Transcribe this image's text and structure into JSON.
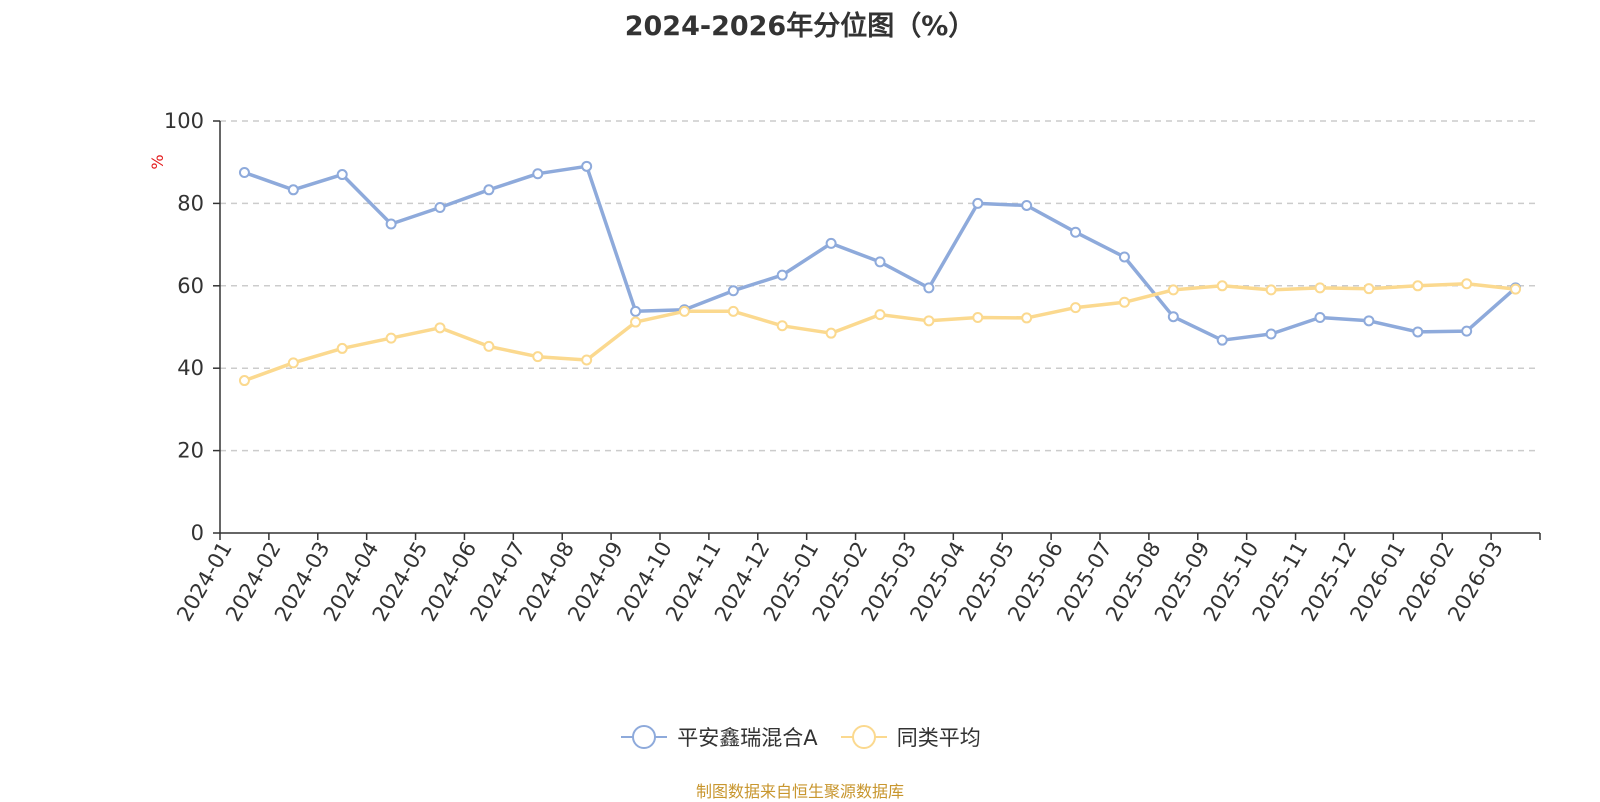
{
  "chart_data": {
    "type": "line",
    "title": "2024-2026年分位图（%）",
    "ylabel": "%",
    "ylim": [
      0,
      100
    ],
    "yticks": [
      0,
      20,
      40,
      60,
      80,
      100
    ],
    "grid": true,
    "legend_position": "bottom",
    "categories": [
      "2024-01",
      "2024-02",
      "2024-03",
      "2024-04",
      "2024-05",
      "2024-06",
      "2024-07",
      "2024-08",
      "2024-09",
      "2024-10",
      "2024-11",
      "2024-12",
      "2025-01",
      "2025-02",
      "2025-03",
      "2025-04",
      "2025-05",
      "2025-06",
      "2025-07",
      "2025-08",
      "2025-09",
      "2025-10",
      "2025-11",
      "2025-12",
      "2026-01",
      "2026-02",
      "2026-03"
    ],
    "series": [
      {
        "name": "平安鑫瑞混合A",
        "color": "#8eaadb",
        "values": [
          87.5,
          83.3,
          87.0,
          75.0,
          79.0,
          83.3,
          87.2,
          89.0,
          53.8,
          54.2,
          58.8,
          62.6,
          70.3,
          65.8,
          59.5,
          80.0,
          79.5,
          73.0,
          67.0,
          52.5,
          46.8,
          48.3,
          52.3,
          51.5,
          48.8,
          49.0,
          59.5
        ]
      },
      {
        "name": "同类平均",
        "color": "#fbd98f",
        "values": [
          37.0,
          41.3,
          44.8,
          47.3,
          49.8,
          45.3,
          42.8,
          42.0,
          51.2,
          53.8,
          53.8,
          50.3,
          48.5,
          53.0,
          51.5,
          52.3,
          52.2,
          54.7,
          56.0,
          59.0,
          60.0,
          59.0,
          59.5,
          59.3,
          60.0,
          60.5,
          59.2
        ]
      }
    ]
  },
  "source_note": "制图数据来自恒生聚源数据库",
  "colors": {
    "axis": "#333333",
    "grid": "#cccccc",
    "ylabel": "#e31a1c",
    "source_note": "#c8962e"
  }
}
